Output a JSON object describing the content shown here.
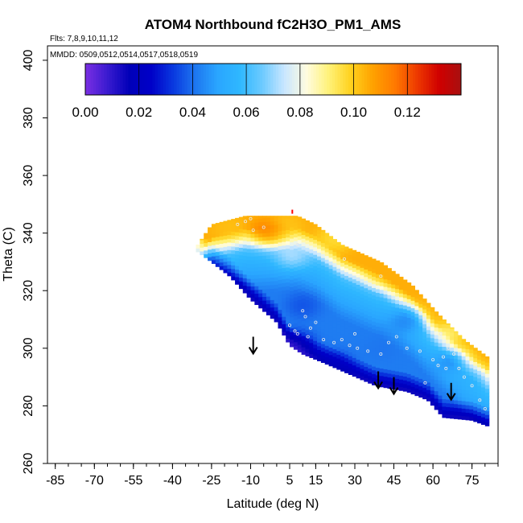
{
  "chart_data": {
    "type": "heatmap",
    "title": "ATOM4 Northbound fC2H3O_PM1_AMS",
    "flights_note": "Flts: 7,8,9,10,11,12",
    "dates_note": "MMDD: 0509,0512,0514,0517,0518,0519",
    "xlabel": "Latitude (deg N)",
    "ylabel": "Theta (C)",
    "xlim": [
      -88,
      85
    ],
    "ylim": [
      260,
      405
    ],
    "x_ticks": [
      "-85",
      "-70",
      "-55",
      "-40",
      "-25",
      "-10",
      "5",
      "15",
      "30",
      "45",
      "60",
      "75"
    ],
    "x_tick_values": [
      -85,
      -70,
      -55,
      -40,
      -25,
      -10,
      5,
      15,
      30,
      45,
      60,
      75
    ],
    "y_ticks": [
      "260",
      "280",
      "300",
      "320",
      "340",
      "360",
      "380",
      "400"
    ],
    "y_tick_values": [
      260,
      280,
      300,
      320,
      340,
      360,
      380,
      400
    ],
    "colorbar": {
      "min": 0,
      "max": 0.14,
      "ticks": [
        "0.00",
        "0.02",
        "0.04",
        "0.06",
        "0.08",
        "0.10",
        "0.12"
      ],
      "tick_values": [
        0,
        0.02,
        0.04,
        0.06,
        0.08,
        0.1,
        0.12
      ],
      "colors": [
        "#7b2fe3",
        "#3a1bd0",
        "#0000b8",
        "#0000c8",
        "#0a3ae0",
        "#1e78f0",
        "#2aa6ff",
        "#2fb8ff",
        "#6ccaff",
        "#c8e6ff",
        "#fffce0",
        "#fff27a",
        "#ffd21e",
        "#ffa200",
        "#ff7a00",
        "#ee3a00",
        "#d00000",
        "#a81010"
      ]
    },
    "domain_upper": [
      [
        -31,
        335
      ],
      [
        -25,
        343
      ],
      [
        -12,
        346
      ],
      [
        0,
        346
      ],
      [
        8,
        346
      ],
      [
        15,
        343
      ],
      [
        25,
        336
      ],
      [
        40,
        330
      ],
      [
        52,
        322
      ],
      [
        62,
        312
      ],
      [
        72,
        303
      ],
      [
        81,
        297
      ]
    ],
    "domain_lower": [
      [
        -31,
        334
      ],
      [
        -25,
        330
      ],
      [
        -18,
        325
      ],
      [
        -10,
        317
      ],
      [
        0,
        309
      ],
      [
        5,
        301
      ],
      [
        10,
        298
      ],
      [
        18,
        295
      ],
      [
        28,
        291
      ],
      [
        38,
        287
      ],
      [
        50,
        285
      ],
      [
        58,
        282
      ],
      [
        64,
        276
      ],
      [
        75,
        275
      ],
      [
        81,
        273
      ]
    ],
    "anomalies": [
      {
        "lat": -3,
        "theta": 340,
        "value": 0.125,
        "spread": 0.11
      },
      {
        "lat": 3,
        "theta": 342,
        "value": 0.095,
        "spread": 0.1
      },
      {
        "lat": -18,
        "theta": 342,
        "value": 0.1,
        "spread": 0.12
      },
      {
        "lat": 22,
        "theta": 338,
        "value": 0.09,
        "spread": 0.11
      },
      {
        "lat": 42,
        "theta": 326,
        "value": 0.105,
        "spread": 0.1
      },
      {
        "lat": 6,
        "theta": 332,
        "value": 0.085,
        "spread": 0.09
      },
      {
        "lat": 7,
        "theta": 301,
        "value": 0.005,
        "spread": 0.12
      },
      {
        "lat": 22,
        "theta": 294,
        "value": 0.02,
        "spread": 0.12
      },
      {
        "lat": 40,
        "theta": 300,
        "value": 0.04,
        "spread": 0.1
      },
      {
        "lat": 50,
        "theta": 310,
        "value": 0.03,
        "spread": 0.08
      },
      {
        "lat": 65,
        "theta": 305,
        "value": 0.065,
        "spread": 0.05
      },
      {
        "lat": 68,
        "theta": 296,
        "value": 0.02,
        "spread": 0.05
      },
      {
        "lat": 10,
        "theta": 315,
        "value": 0.03,
        "spread": 0.08
      },
      {
        "lat": 75,
        "theta": 290,
        "value": 0.05,
        "spread": 0.08
      }
    ],
    "observation_points": [
      [
        -10,
        345
      ],
      [
        -12,
        344
      ],
      [
        -9,
        341
      ],
      [
        -15,
        343
      ],
      [
        -5,
        342
      ],
      [
        8,
        336
      ],
      [
        26,
        331
      ],
      [
        40,
        325
      ],
      [
        10,
        313
      ],
      [
        11,
        311
      ],
      [
        8,
        305
      ],
      [
        5,
        308
      ],
      [
        7,
        306
      ],
      [
        13,
        307
      ],
      [
        15,
        309
      ],
      [
        12,
        304
      ],
      [
        18,
        303
      ],
      [
        22,
        302
      ],
      [
        25,
        303
      ],
      [
        28,
        301
      ],
      [
        31,
        300
      ],
      [
        35,
        299
      ],
      [
        40,
        298
      ],
      [
        43,
        302
      ],
      [
        50,
        300
      ],
      [
        55,
        299
      ],
      [
        60,
        296
      ],
      [
        62,
        294
      ],
      [
        64,
        297
      ],
      [
        66,
        300
      ],
      [
        68,
        298
      ],
      [
        70,
        293
      ],
      [
        72,
        290
      ],
      [
        75,
        287
      ],
      [
        78,
        282
      ],
      [
        80,
        279
      ],
      [
        30,
        305
      ],
      [
        46,
        304
      ],
      [
        57,
        288
      ],
      [
        63,
        305
      ],
      [
        65,
        293
      ]
    ],
    "arrows": [
      {
        "lat": -9,
        "theta": 304
      },
      {
        "lat": 39,
        "theta": 292
      },
      {
        "lat": 45,
        "theta": 290
      },
      {
        "lat": 67,
        "theta": 288
      }
    ],
    "red_marker": {
      "lat": 6,
      "theta": 347
    }
  }
}
